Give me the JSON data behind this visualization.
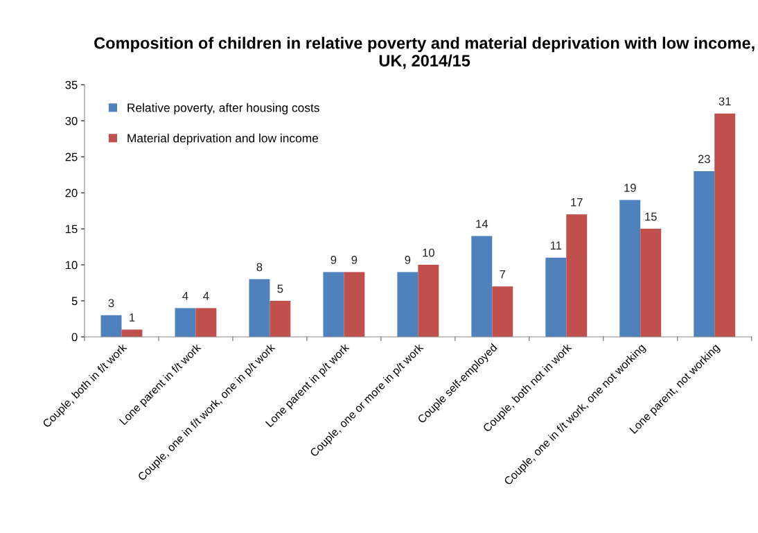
{
  "chart_data": {
    "type": "bar",
    "title": "Composition of children in relative poverty and material deprivation with low income, UK, 2014/15",
    "categories": [
      "Couple, both in f/t work",
      "Lone parent in f/t work",
      "Couple, one in f/t work, one in p/t work",
      "Lone parent in p/t work",
      "Couple, one or more in p/t work",
      "Couple self-employed",
      "Couple, both not in work",
      "Couple, one in f/t work, one not working",
      "Lone parent, not working"
    ],
    "series": [
      {
        "name": "Relative poverty, after housing costs",
        "color": "#4f81bd",
        "values": [
          3,
          4,
          8,
          9,
          9,
          14,
          11,
          19,
          23
        ]
      },
      {
        "name": "Material deprivation and low income",
        "color": "#c0504d",
        "values": [
          1,
          4,
          5,
          9,
          10,
          7,
          17,
          15,
          31
        ]
      }
    ],
    "ylim": [
      0,
      35
    ],
    "yticks": [
      0,
      5,
      10,
      15,
      20,
      25,
      30,
      35
    ],
    "grid": false,
    "legend": "top left",
    "data_labels": true
  }
}
